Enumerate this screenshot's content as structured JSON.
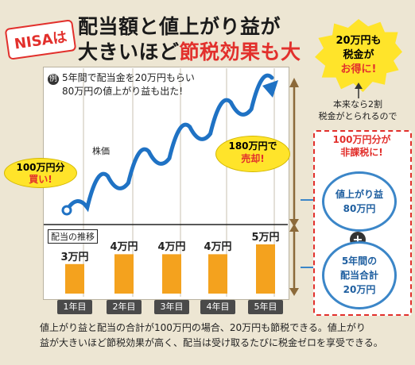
{
  "header": {
    "badge": "NISAは",
    "title_line1": "配当額と値上がり益が",
    "title_line2_black": "大きいほど",
    "title_line2_red": "節税効果も大"
  },
  "example": {
    "mark": "例",
    "line1": "5年間で配当金を20万円もらい",
    "line2": "80万円の値上がり益も出た!"
  },
  "line_chart": {
    "label": "株価",
    "buy_line1": "100万円分",
    "buy_line2": "買い!",
    "sell_line1": "180万円で",
    "sell_line2": "売却!"
  },
  "chart_data": {
    "type": "bar",
    "title": "配当の推移",
    "categories": [
      "1年目",
      "2年目",
      "3年目",
      "4年目",
      "5年目"
    ],
    "values": [
      3,
      4,
      4,
      4,
      5
    ],
    "value_labels": [
      "3万円",
      "4万円",
      "4万円",
      "4万円",
      "5万円"
    ],
    "unit": "万円",
    "ylim": [
      0,
      5
    ],
    "bar_color": "#f4a21e"
  },
  "side": {
    "burst_line1": "20万円も",
    "burst_line2": "税金が",
    "burst_line3": "お得に!",
    "honrai_line1": "本来なら2割",
    "honrai_line2": "税金がとられるので",
    "hikazei_line1": "100万円分が",
    "hikazei_line2": "非課税に!",
    "gain_line1": "値上がり益",
    "gain_line2": "80万円",
    "plus": "+",
    "div_line1": "5年間の",
    "div_line2": "配当合計",
    "div_line3": "20万円"
  },
  "footer": {
    "line1": "値上がり益と配当の合計が100万円の場合、20万円も節税できる。値上がり",
    "line2": "益が大きいほど節税効果が高く、配当は受け取るたびに税金ゼロを享受できる。"
  },
  "colors": {
    "accent_red": "#e2302c",
    "line_blue": "#1f72c4",
    "arrow_brown": "#8c6a3a",
    "bar_orange": "#f4a21e",
    "highlight_yellow": "#ffe42a"
  }
}
